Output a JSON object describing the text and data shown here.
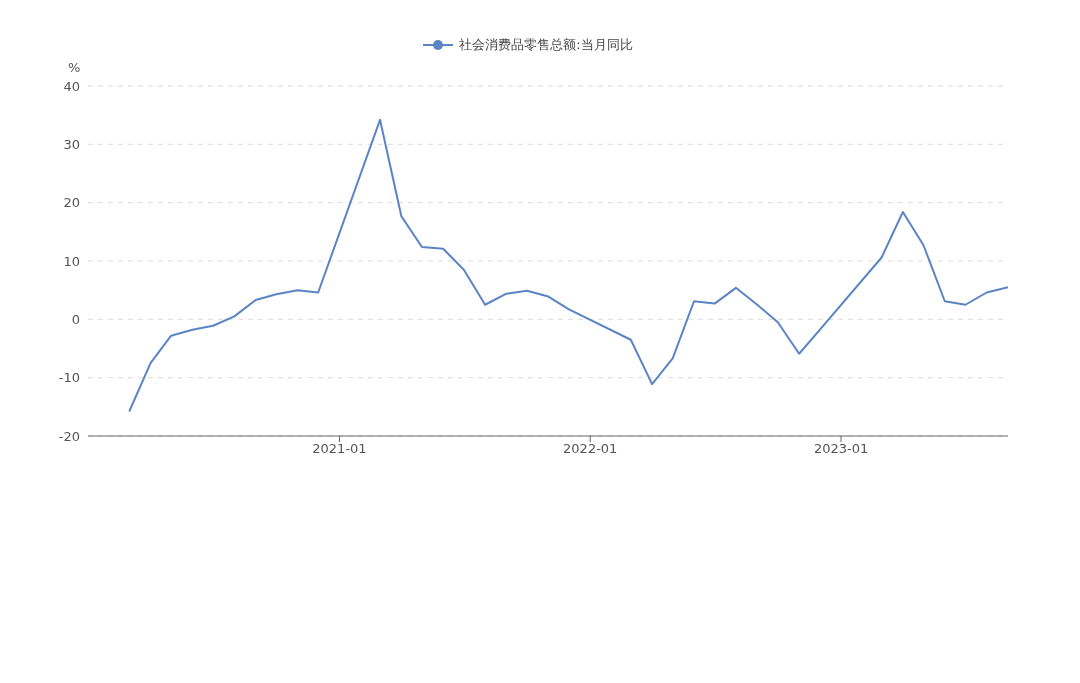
{
  "chart_data": {
    "type": "line",
    "ylabel": "%",
    "x": [
      "2020-03",
      "2020-04",
      "2020-05",
      "2020-06",
      "2020-07",
      "2020-08",
      "2020-09",
      "2020-10",
      "2020-11",
      "2020-12",
      "2021-03",
      "2021-04",
      "2021-05",
      "2021-06",
      "2021-07",
      "2021-08",
      "2021-09",
      "2021-10",
      "2021-11",
      "2021-12",
      "2022-03",
      "2022-04",
      "2022-05",
      "2022-06",
      "2022-07",
      "2022-08",
      "2022-09",
      "2022-10",
      "2022-11",
      "2022-12",
      "2023-03",
      "2023-04",
      "2023-05",
      "2023-06",
      "2023-07",
      "2023-08",
      "2023-09"
    ],
    "series": [
      {
        "name": "社会消费品零售总额:当月同比",
        "color": "#5b84c4",
        "values": [
          -15.8,
          -7.5,
          -2.8,
          -1.8,
          -1.1,
          0.5,
          3.3,
          4.3,
          5.0,
          4.6,
          34.2,
          17.7,
          12.4,
          12.1,
          8.5,
          2.5,
          4.4,
          4.9,
          3.9,
          1.7,
          -3.5,
          -11.1,
          -6.7,
          3.1,
          2.7,
          5.4,
          2.5,
          -0.5,
          -5.9,
          -1.8,
          10.6,
          18.4,
          12.7,
          3.1,
          2.5,
          4.6,
          5.5
        ]
      }
    ],
    "xlim": [
      "2020-01",
      "2023-09"
    ],
    "xticks": [
      "2021-01",
      "2022-01",
      "2023-01"
    ],
    "ylim": [
      -20,
      40
    ],
    "yticks": [
      -20,
      -10,
      0,
      10,
      20,
      30,
      40
    ],
    "grid": "y",
    "legend": "top",
    "line_style": "solid"
  }
}
